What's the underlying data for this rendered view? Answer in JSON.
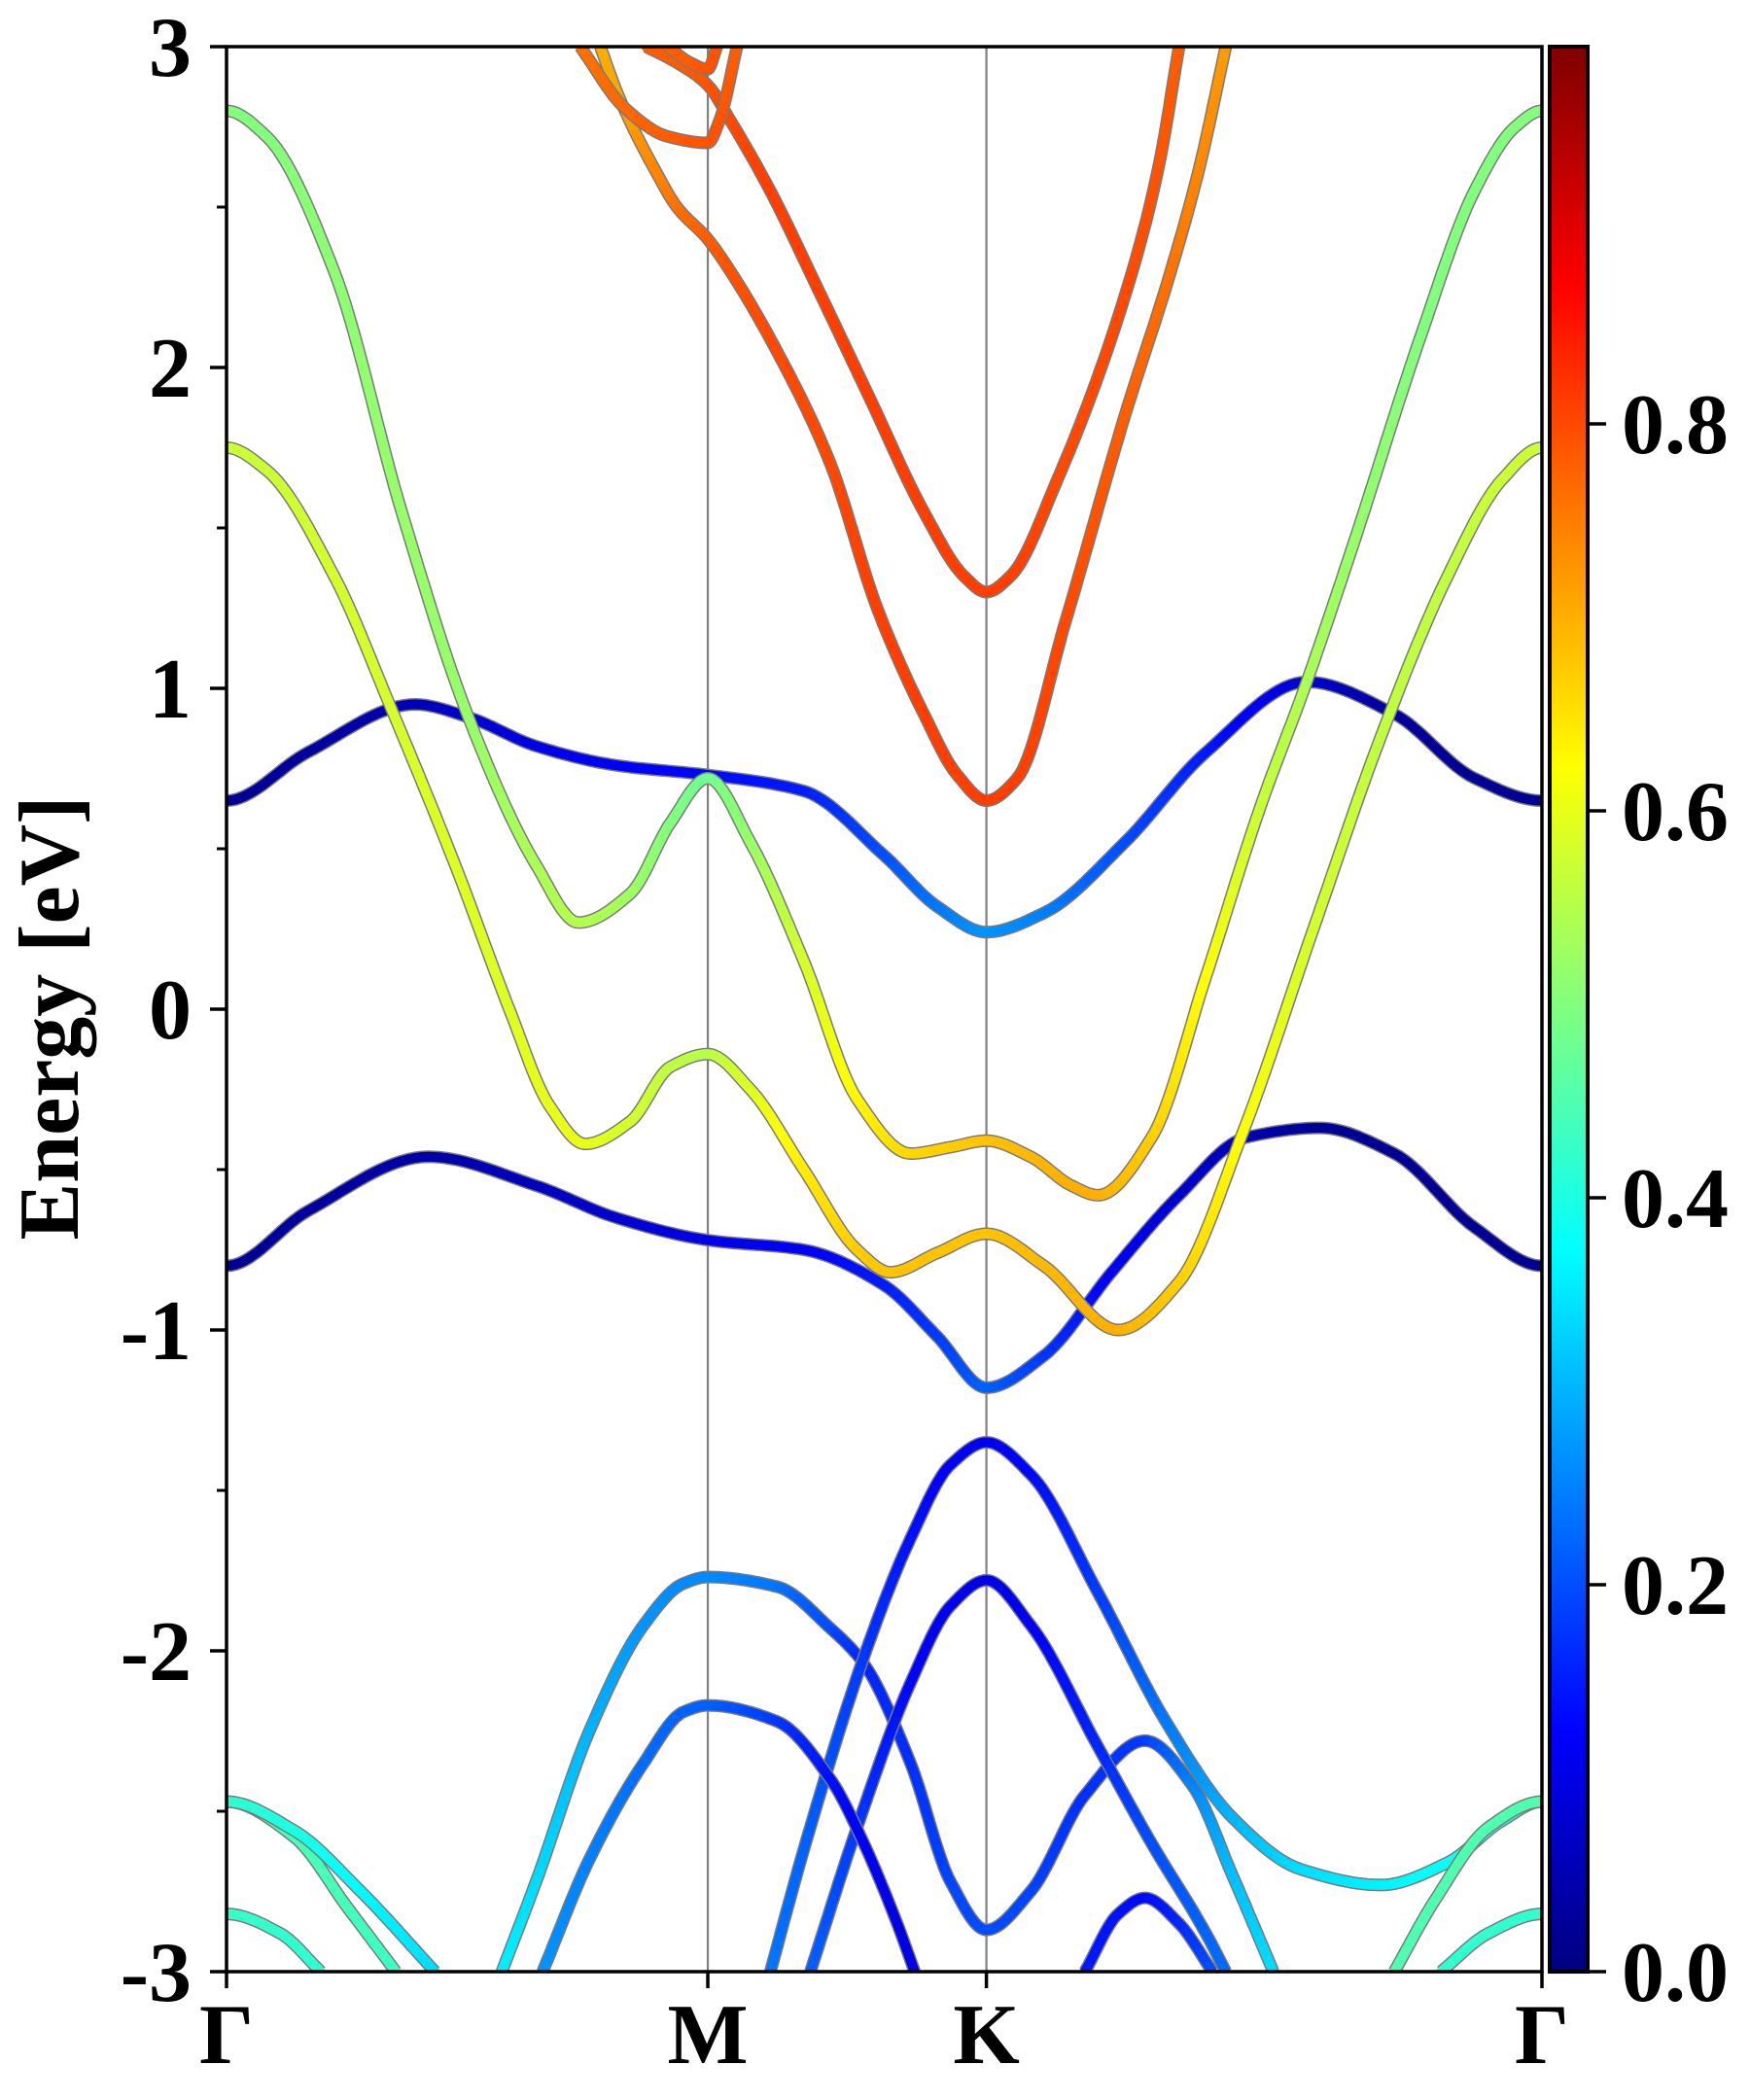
{
  "chart_data": {
    "type": "line",
    "title": "",
    "xlabel": "",
    "ylabel": "Energy [eV]",
    "xlim": [
      0,
      1.577
    ],
    "ylim": [
      -3,
      3
    ],
    "grid": false,
    "yticks": [
      -3,
      -2,
      -1,
      0,
      1,
      2,
      3
    ],
    "ytick_labels": [
      "-3",
      "-2",
      "-1",
      "0",
      "1",
      "2",
      "3"
    ],
    "yminor_ticks": [
      -2.5,
      -1.5,
      -0.5,
      0.5,
      1.5,
      2.5
    ],
    "xticks": [
      0,
      0.577,
      0.911,
      1.577
    ],
    "xtick_labels": [
      "Γ",
      "M",
      "K",
      "Γ"
    ],
    "colorbar": {
      "range": [
        0,
        0.995
      ],
      "ticks": [
        0.0,
        0.2,
        0.4,
        0.6,
        0.8
      ],
      "tick_labels": [
        "0.0",
        "0.2",
        "0.4",
        "0.6",
        "0.8"
      ]
    },
    "colors": {
      "axis": "#000000",
      "kpath_line": "#808080",
      "band_edge": "#7a7a7a"
    },
    "series": [
      {
        "k": [
          0,
          0.097,
          0.226,
          0.29,
          0.371,
          0.467,
          0.577,
          0.692,
          0.788,
          0.852,
          0.911,
          0.98,
          1.077,
          1.174,
          1.295,
          1.4,
          1.496,
          1.577
        ],
        "E": [
          0.65,
          0.8,
          0.95,
          0.91,
          0.82,
          0.76,
          0.73,
          0.68,
          0.48,
          0.32,
          0.24,
          0.3,
          0.52,
          0.8,
          1.02,
          0.92,
          0.72,
          0.65
        ],
        "weight": [
          0.02,
          0.03,
          0.05,
          0.08,
          0.1,
          0.12,
          0.13,
          0.15,
          0.2,
          0.24,
          0.27,
          0.25,
          0.2,
          0.15,
          0.08,
          0.03,
          0.02,
          0.02
        ]
      },
      {
        "k": [
          0,
          0.097,
          0.242,
          0.371,
          0.467,
          0.577,
          0.692,
          0.788,
          0.852,
          0.911,
          0.98,
          1.061,
          1.142,
          1.222,
          1.311,
          1.4,
          1.496,
          1.577
        ],
        "E": [
          -0.8,
          -0.63,
          -0.46,
          -0.55,
          -0.65,
          -0.72,
          -0.75,
          -0.86,
          -1.02,
          -1.18,
          -1.08,
          -0.82,
          -0.58,
          -0.4,
          -0.37,
          -0.45,
          -0.68,
          -0.8
        ],
        "weight": [
          0.02,
          0.03,
          0.04,
          0.06,
          0.08,
          0.1,
          0.12,
          0.15,
          0.18,
          0.22,
          0.18,
          0.12,
          0.08,
          0.05,
          0.02,
          0.02,
          0.02,
          0.02
        ]
      },
      {
        "k": [
          0,
          0.048,
          0.129,
          0.21,
          0.29,
          0.371,
          0.422,
          0.484,
          0.532,
          0.577,
          0.628,
          0.692,
          0.756,
          0.82,
          0.868,
          0.911,
          0.964,
          1.013,
          1.045,
          1.109,
          1.174,
          1.238,
          1.295,
          1.351,
          1.432,
          1.496,
          1.545,
          1.577
        ],
        "E": [
          2.8,
          2.72,
          2.3,
          1.55,
          0.91,
          0.45,
          0.27,
          0.36,
          0.58,
          0.72,
          0.52,
          0.15,
          -0.28,
          -0.45,
          -0.43,
          -0.41,
          -0.46,
          -0.55,
          -0.58,
          -0.4,
          0.1,
          0.62,
          1.02,
          1.45,
          2.1,
          2.55,
          2.75,
          2.8
        ],
        "weight": [
          0.5,
          0.5,
          0.51,
          0.52,
          0.52,
          0.54,
          0.55,
          0.53,
          0.5,
          0.48,
          0.52,
          0.58,
          0.63,
          0.66,
          0.67,
          0.68,
          0.69,
          0.7,
          0.7,
          0.67,
          0.62,
          0.57,
          0.54,
          0.52,
          0.5,
          0.5,
          0.5,
          0.5
        ]
      },
      {
        "k": [
          0,
          0.048,
          0.129,
          0.197,
          0.274,
          0.339,
          0.387,
          0.43,
          0.484,
          0.532,
          0.577,
          0.628,
          0.692,
          0.756,
          0.796,
          0.852,
          0.911,
          0.98,
          1.069,
          1.142,
          1.219,
          1.303,
          1.384,
          1.464,
          1.529,
          1.577
        ],
        "E": [
          1.75,
          1.68,
          1.35,
          0.94,
          0.45,
          0.0,
          -0.3,
          -0.42,
          -0.35,
          -0.18,
          -0.14,
          -0.25,
          -0.5,
          -0.75,
          -0.82,
          -0.76,
          -0.7,
          -0.8,
          -1.0,
          -0.85,
          -0.38,
          0.25,
          0.85,
          1.35,
          1.65,
          1.75
        ],
        "weight": [
          0.57,
          0.57,
          0.58,
          0.58,
          0.59,
          0.59,
          0.6,
          0.6,
          0.58,
          0.56,
          0.55,
          0.59,
          0.64,
          0.67,
          0.68,
          0.68,
          0.68,
          0.69,
          0.7,
          0.67,
          0.62,
          0.58,
          0.56,
          0.56,
          0.57,
          0.57
        ]
      },
      {
        "k": [
          0.448,
          0.471,
          0.517,
          0.54,
          0.577,
          0.604,
          0.66,
          0.724,
          0.78,
          0.836,
          0.876,
          0.911,
          0.948,
          1.006,
          1.077,
          1.132,
          1.166,
          1.198
        ],
        "E": [
          3.0,
          2.84,
          2.6,
          2.5,
          2.4,
          2.3,
          2.05,
          1.7,
          1.25,
          0.92,
          0.73,
          0.65,
          0.72,
          1.21,
          1.85,
          2.3,
          2.62,
          3.0
        ],
        "weight": [
          0.7,
          0.71,
          0.74,
          0.76,
          0.78,
          0.79,
          0.8,
          0.8,
          0.81,
          0.81,
          0.81,
          0.81,
          0.81,
          0.8,
          0.78,
          0.76,
          0.74,
          0.72
        ]
      },
      {
        "k": [
          0.503,
          0.54,
          0.577,
          0.604,
          0.652,
          0.708,
          0.772,
          0.836,
          0.884,
          0.911,
          0.94,
          0.996,
          1.079,
          1.117,
          1.142
        ],
        "E": [
          3.0,
          2.95,
          2.88,
          2.77,
          2.55,
          2.25,
          1.9,
          1.55,
          1.35,
          1.3,
          1.35,
          1.65,
          2.24,
          2.62,
          3.0
        ],
        "weight": [
          0.78,
          0.78,
          0.79,
          0.8,
          0.81,
          0.81,
          0.81,
          0.81,
          0.81,
          0.81,
          0.81,
          0.8,
          0.8,
          0.79,
          0.78
        ]
      },
      {
        "k": [
          0.424,
          0.477,
          0.529,
          0.577,
          0.591,
          0.612
        ],
        "E": [
          3.0,
          2.81,
          2.72,
          2.7,
          2.77,
          3.0
        ],
        "weight": [
          0.76,
          0.77,
          0.78,
          0.79,
          0.79,
          0.78
        ]
      },
      {
        "k": [
          0.529,
          0.556,
          0.577,
          0.588
        ],
        "E": [
          3.0,
          2.95,
          2.93,
          3.0
        ],
        "weight": [
          0.78,
          0.78,
          0.79,
          0.79
        ]
      },
      {
        "k": [
          0.33,
          0.371,
          0.435,
          0.5,
          0.548,
          0.577,
          0.66,
          0.724,
          0.764,
          0.82,
          0.868,
          0.911,
          0.964,
          1.029,
          1.101,
          1.158,
          1.206,
          1.255
        ],
        "E": [
          -3.0,
          -2.72,
          -2.25,
          -1.92,
          -1.79,
          -1.77,
          -1.8,
          -1.93,
          -2.04,
          -2.35,
          -2.72,
          -2.87,
          -2.75,
          -2.45,
          -2.28,
          -2.42,
          -2.7,
          -3.0
        ],
        "weight": [
          0.36,
          0.34,
          0.3,
          0.27,
          0.26,
          0.26,
          0.24,
          0.2,
          0.16,
          0.17,
          0.19,
          0.2,
          0.19,
          0.17,
          0.18,
          0.25,
          0.31,
          0.34
        ]
      },
      {
        "k": [
          0.652,
          0.692,
          0.764,
          0.82,
          0.868,
          0.911,
          0.964,
          1.045,
          1.126,
          1.206,
          1.287,
          1.384,
          1.464,
          1.529,
          1.577
        ],
        "E": [
          -3.0,
          -2.62,
          -2.02,
          -1.65,
          -1.42,
          -1.35,
          -1.45,
          -1.82,
          -2.22,
          -2.52,
          -2.68,
          -2.73,
          -2.66,
          -2.53,
          -2.47
        ],
        "weight": [
          0.24,
          0.22,
          0.18,
          0.14,
          0.12,
          0.11,
          0.13,
          0.18,
          0.24,
          0.3,
          0.34,
          0.36,
          0.38,
          0.4,
          0.41
        ]
      },
      {
        "k": [
          0.7,
          0.756,
          0.82,
          0.868,
          0.911,
          0.964,
          1.045,
          1.109,
          1.174,
          1.198
        ],
        "E": [
          -3.0,
          -2.55,
          -2.1,
          -1.86,
          -1.78,
          -1.92,
          -2.3,
          -2.6,
          -2.88,
          -3.0
        ],
        "weight": [
          0.22,
          0.18,
          0.13,
          0.11,
          0.1,
          0.12,
          0.16,
          0.2,
          0.22,
          0.23
        ]
      },
      {
        "k": [
          0.379,
          0.435,
          0.5,
          0.548,
          0.577,
          0.66,
          0.724,
          0.764,
          0.804,
          0.825
        ],
        "E": [
          -3.0,
          -2.65,
          -2.35,
          -2.19,
          -2.17,
          -2.22,
          -2.4,
          -2.6,
          -2.85,
          -3.0
        ],
        "weight": [
          0.27,
          0.25,
          0.23,
          0.22,
          0.22,
          0.18,
          0.14,
          0.12,
          0.1,
          0.1
        ]
      },
      {
        "k": [
          1.029,
          1.069,
          1.101,
          1.142,
          1.182
        ],
        "E": [
          -3.0,
          -2.82,
          -2.77,
          -2.85,
          -3.0
        ],
        "weight": [
          0.15,
          0.14,
          0.13,
          0.16,
          0.2
        ]
      },
      {
        "k": [
          0,
          0.081,
          0.145,
          0.203
        ],
        "E": [
          -2.47,
          -2.58,
          -2.8,
          -3.0
        ],
        "weight": [
          0.45,
          0.44,
          0.44,
          0.43
        ]
      },
      {
        "k": [
          0,
          0.081,
          0.161,
          0.25
        ],
        "E": [
          -2.47,
          -2.56,
          -2.75,
          -3.0
        ],
        "weight": [
          0.42,
          0.4,
          0.37,
          0.34
        ]
      },
      {
        "k": [
          0,
          0.064,
          0.113
        ],
        "E": [
          -2.82,
          -2.88,
          -3.0
        ],
        "weight": [
          0.43,
          0.42,
          0.42
        ]
      },
      {
        "k": [
          1.4,
          1.448,
          1.513,
          1.577
        ],
        "E": [
          -3.0,
          -2.78,
          -2.55,
          -2.47
        ],
        "weight": [
          0.45,
          0.45,
          0.45,
          0.45
        ]
      },
      {
        "k": [
          1.456,
          1.513,
          1.577
        ],
        "E": [
          -3.0,
          -2.88,
          -2.82
        ],
        "weight": [
          0.42,
          0.42,
          0.42
        ]
      }
    ]
  }
}
